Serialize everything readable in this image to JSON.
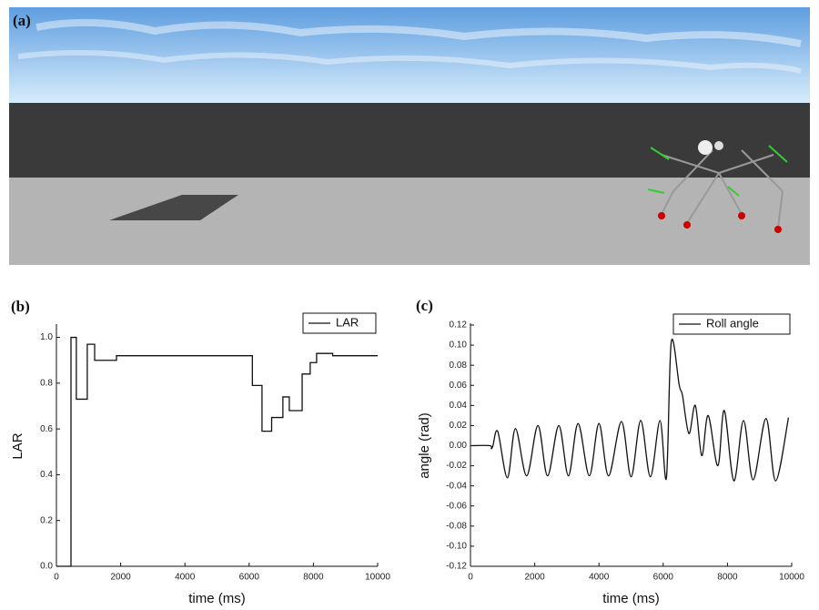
{
  "scene": {
    "label": "(a)"
  },
  "chart_data": [
    {
      "type": "line",
      "label": "(b)",
      "x_label": "time (ms)",
      "y_label": "LAR",
      "xlim": [
        0,
        10000
      ],
      "ylim": [
        0,
        1.05
      ],
      "xticks": [
        0,
        2000,
        4000,
        6000,
        8000,
        10000
      ],
      "yticks": [
        {
          "value": 0,
          "label": "0.0"
        },
        0.2,
        0.4,
        0.6,
        0.8,
        {
          "value": 1,
          "label": "1.0"
        }
      ],
      "smooth": false,
      "series": [
        {
          "name": "LAR",
          "color": "#111111",
          "x": [
            0,
            453,
            453,
            620,
            620,
            960,
            960,
            1190,
            1190,
            1870,
            1870,
            6100,
            6100,
            6400,
            6400,
            6700,
            6700,
            7050,
            7050,
            7250,
            7250,
            7650,
            7650,
            7900,
            7900,
            8100,
            8100,
            8600,
            8600,
            10000
          ],
          "values": [
            0,
            0,
            1.0,
            1.0,
            0.73,
            0.73,
            0.97,
            0.97,
            0.9,
            0.9,
            0.92,
            0.92,
            0.79,
            0.79,
            0.59,
            0.59,
            0.65,
            0.65,
            0.74,
            0.74,
            0.68,
            0.68,
            0.84,
            0.84,
            0.89,
            0.89,
            0.93,
            0.93,
            0.92,
            0.92
          ]
        }
      ]
    },
    {
      "type": "line",
      "label": "(c)",
      "x_label": "time (ms)",
      "y_label": "angle (rad)",
      "xlim": [
        0,
        10000
      ],
      "ylim": [
        -0.12,
        0.12
      ],
      "xticks": [
        0,
        2000,
        4000,
        6000,
        8000,
        10000
      ],
      "yticks": [
        {
          "value": -0.12,
          "label": "-0.12"
        },
        {
          "value": -0.1,
          "label": "-0.10"
        },
        {
          "value": -0.08,
          "label": "-0.08"
        },
        {
          "value": -0.06,
          "label": "-0.06"
        },
        {
          "value": -0.04,
          "label": "-0.04"
        },
        {
          "value": -0.02,
          "label": "-0.02"
        },
        {
          "value": 0,
          "label": "0.00"
        },
        0.02,
        0.04,
        0.06,
        0.08,
        {
          "value": 0.1,
          "label": "0.10"
        },
        0.12
      ],
      "smooth": true,
      "series": [
        {
          "name": "Roll angle",
          "color": "#111111",
          "x": [
            0,
            600,
            650,
            700,
            850,
            1150,
            1400,
            1750,
            2100,
            2400,
            2750,
            3050,
            3350,
            3700,
            4000,
            4300,
            4700,
            5000,
            5300,
            5600,
            5900,
            6100,
            6250,
            6500,
            6600,
            6800,
            7000,
            7200,
            7400,
            7700,
            7900,
            8200,
            8500,
            8800,
            9200,
            9500,
            9900
          ],
          "values": [
            0,
            0,
            -0.003,
            0,
            0.014,
            -0.032,
            0.017,
            -0.03,
            0.02,
            -0.03,
            0.02,
            -0.03,
            0.022,
            -0.03,
            0.022,
            -0.03,
            0.024,
            -0.031,
            0.025,
            -0.031,
            0.025,
            -0.032,
            0.103,
            0.06,
            0.05,
            0.012,
            0.04,
            -0.01,
            0.03,
            -0.02,
            0.035,
            -0.035,
            0.025,
            -0.034,
            0.027,
            -0.035,
            0.028
          ]
        }
      ]
    }
  ]
}
